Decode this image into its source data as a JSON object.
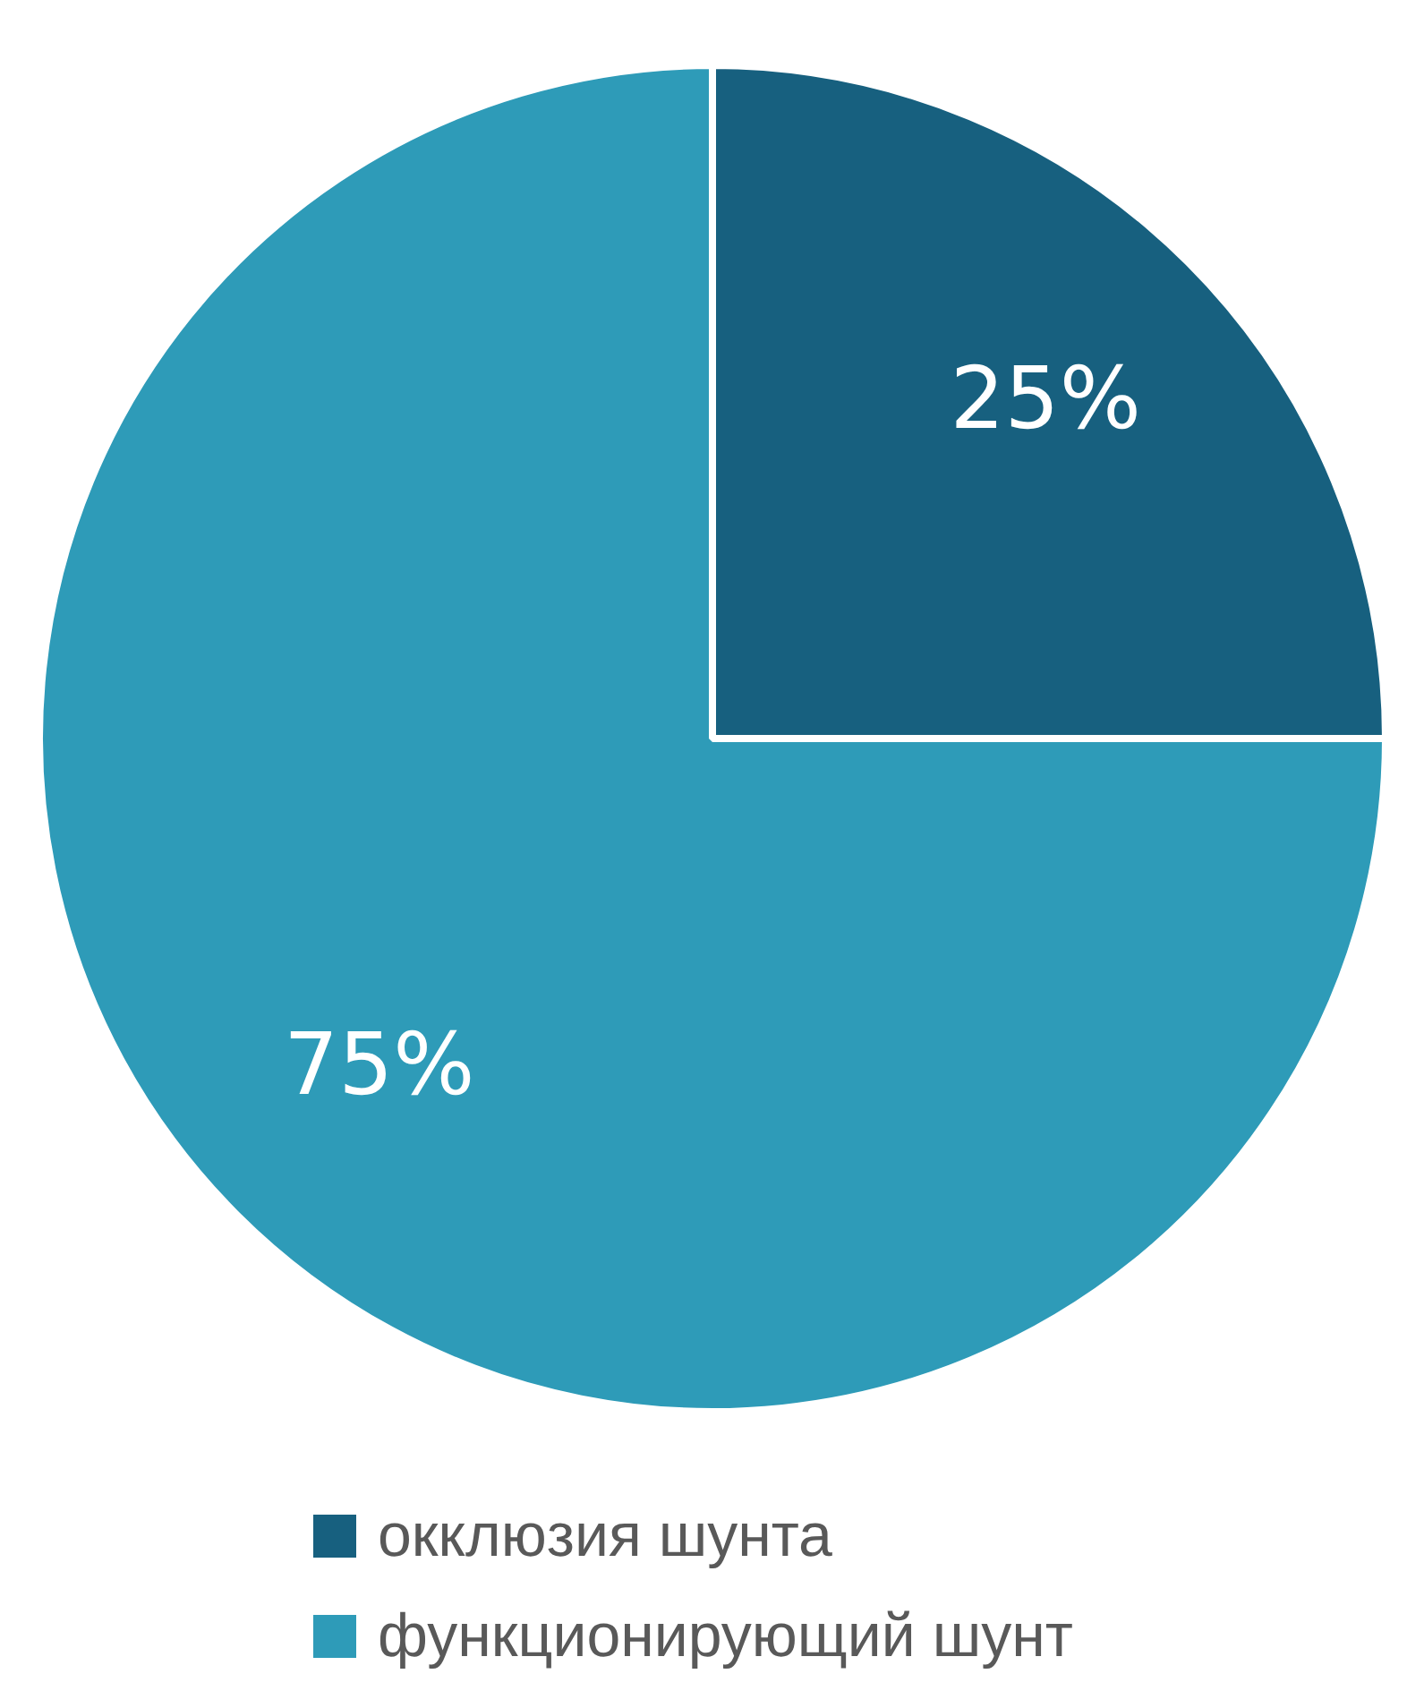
{
  "chart_data": {
    "type": "pie",
    "categories": [
      "окклюзия шунта",
      "функционирующий шунт"
    ],
    "values": [
      25,
      75
    ],
    "colors": [
      "#17607f",
      "#2e9bb8"
    ],
    "value_labels": [
      "25%",
      "75%"
    ],
    "legend": "bottom"
  }
}
